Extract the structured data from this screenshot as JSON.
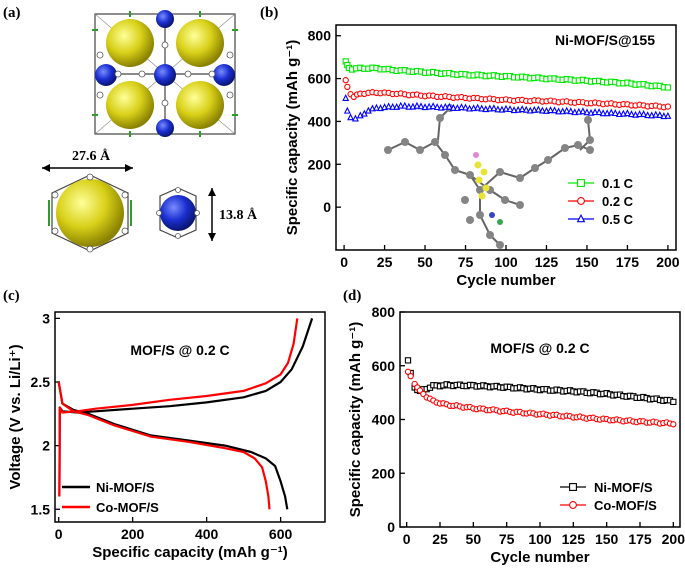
{
  "panels": {
    "a": {
      "label": "(a)",
      "dimension_width": "27.6 Å",
      "dimension_height": "13.8 Å"
    }
  },
  "chart_data": [
    {
      "id": "b",
      "panel_label": "(b)",
      "type": "scatter",
      "annotation": "Ni-MOF/S@155",
      "xlabel": "Cycle number",
      "ylabel": "Specific capacity (mAh g⁻¹)",
      "xlim": [
        -5,
        205
      ],
      "ylim": [
        -200,
        850
      ],
      "xticks": [
        0,
        25,
        50,
        75,
        100,
        125,
        150,
        175,
        200
      ],
      "yticks": [
        0,
        200,
        400,
        600,
        800
      ],
      "legend_position": "bottom-right",
      "inset": "molecular structure image",
      "series": [
        {
          "name": "0.1 C",
          "color": "#00e600",
          "marker": "square",
          "points": [
            [
              1,
              680
            ],
            [
              2,
              660
            ],
            [
              3,
              650
            ],
            [
              5,
              645
            ],
            [
              10,
              648
            ],
            [
              20,
              648
            ],
            [
              30,
              640
            ],
            [
              50,
              630
            ],
            [
              75,
              618
            ],
            [
              100,
              610
            ],
            [
              125,
              600
            ],
            [
              150,
              590
            ],
            [
              175,
              578
            ],
            [
              200,
              560
            ]
          ]
        },
        {
          "name": "0.2 C",
          "color": "#ff0000",
          "marker": "circle",
          "points": [
            [
              1,
              590
            ],
            [
              2,
              560
            ],
            [
              4,
              530
            ],
            [
              6,
              515
            ],
            [
              10,
              530
            ],
            [
              20,
              535
            ],
            [
              35,
              528
            ],
            [
              50,
              520
            ],
            [
              75,
              510
            ],
            [
              100,
              500
            ],
            [
              125,
              495
            ],
            [
              150,
              487
            ],
            [
              175,
              478
            ],
            [
              200,
              468
            ]
          ]
        },
        {
          "name": "0.5 C",
          "color": "#0000ff",
          "marker": "triangle",
          "points": [
            [
              1,
              505
            ],
            [
              2,
              450
            ],
            [
              4,
              420
            ],
            [
              7,
              410
            ],
            [
              10,
              425
            ],
            [
              15,
              450
            ],
            [
              20,
              462
            ],
            [
              35,
              470
            ],
            [
              50,
              468
            ],
            [
              75,
              462
            ],
            [
              100,
              455
            ],
            [
              125,
              450
            ],
            [
              150,
              442
            ],
            [
              175,
              434
            ],
            [
              200,
              425
            ]
          ]
        }
      ]
    },
    {
      "id": "c",
      "panel_label": "(c)",
      "type": "line",
      "annotation": "MOF/S @ 0.2 C",
      "xlabel": "Specific capacity (mAh g⁻¹)",
      "ylabel": "Voltage (V vs. Li/Li⁺)",
      "xlim": [
        -10,
        720
      ],
      "ylim": [
        1.4,
        3.05
      ],
      "xticks": [
        0,
        200,
        400,
        600
      ],
      "yticks": [
        1.5,
        2.0,
        2.5,
        3.0
      ],
      "legend_position": "bottom-left",
      "series": [
        {
          "name": "Ni-MOF/S",
          "color": "#000000",
          "charge": [
            [
              2,
              1.6
            ],
            [
              3,
              2.3
            ],
            [
              10,
              2.27
            ],
            [
              50,
              2.26
            ],
            [
              100,
              2.27
            ],
            [
              200,
              2.29
            ],
            [
              300,
              2.31
            ],
            [
              400,
              2.34
            ],
            [
              500,
              2.38
            ],
            [
              560,
              2.43
            ],
            [
              600,
              2.5
            ],
            [
              630,
              2.6
            ],
            [
              660,
              2.78
            ],
            [
              685,
              3.0
            ]
          ],
          "discharge": [
            [
              0,
              2.5
            ],
            [
              10,
              2.33
            ],
            [
              40,
              2.28
            ],
            [
              80,
              2.25
            ],
            [
              150,
              2.17
            ],
            [
              250,
              2.08
            ],
            [
              350,
              2.04
            ],
            [
              450,
              2.0
            ],
            [
              520,
              1.95
            ],
            [
              560,
              1.9
            ],
            [
              585,
              1.84
            ],
            [
              600,
              1.72
            ],
            [
              612,
              1.6
            ],
            [
              618,
              1.5
            ]
          ]
        },
        {
          "name": "Co-MOF/S",
          "color": "#ff0000",
          "charge": [
            [
              2,
              1.6
            ],
            [
              3,
              2.3
            ],
            [
              10,
              2.26
            ],
            [
              50,
              2.27
            ],
            [
              100,
              2.29
            ],
            [
              200,
              2.32
            ],
            [
              300,
              2.36
            ],
            [
              400,
              2.39
            ],
            [
              500,
              2.43
            ],
            [
              560,
              2.49
            ],
            [
              600,
              2.56
            ],
            [
              620,
              2.65
            ],
            [
              635,
              2.8
            ],
            [
              645,
              3.0
            ]
          ],
          "discharge": [
            [
              0,
              2.5
            ],
            [
              10,
              2.33
            ],
            [
              40,
              2.27
            ],
            [
              80,
              2.24
            ],
            [
              150,
              2.16
            ],
            [
              250,
              2.07
            ],
            [
              350,
              2.03
            ],
            [
              450,
              1.98
            ],
            [
              500,
              1.95
            ],
            [
              530,
              1.9
            ],
            [
              550,
              1.83
            ],
            [
              560,
              1.72
            ],
            [
              567,
              1.6
            ],
            [
              570,
              1.5
            ]
          ]
        }
      ]
    },
    {
      "id": "d",
      "panel_label": "(d)",
      "type": "scatter",
      "annotation": "MOF/S @ 0.2 C",
      "xlabel": "Cycle number",
      "ylabel": "Specific capacity (mAh g⁻¹)",
      "xlim": [
        -5,
        205
      ],
      "ylim": [
        0,
        800
      ],
      "xticks": [
        0,
        25,
        50,
        75,
        100,
        125,
        150,
        175,
        200
      ],
      "yticks": [
        0,
        200,
        400,
        600,
        800
      ],
      "legend_position": "bottom-right",
      "series": [
        {
          "name": "Ni-MOF/S",
          "color": "#000000",
          "marker": "square",
          "points": [
            [
              1,
              620
            ],
            [
              3,
              570
            ],
            [
              6,
              520
            ],
            [
              10,
              505
            ],
            [
              15,
              515
            ],
            [
              20,
              525
            ],
            [
              30,
              528
            ],
            [
              50,
              526
            ],
            [
              75,
              520
            ],
            [
              100,
              512
            ],
            [
              125,
              505
            ],
            [
              150,
              495
            ],
            [
              175,
              482
            ],
            [
              200,
              468
            ]
          ]
        },
        {
          "name": "Co-MOF/S",
          "color": "#ff0000",
          "marker": "circle",
          "points": [
            [
              1,
              575
            ],
            [
              3,
              560
            ],
            [
              6,
              535
            ],
            [
              10,
              505
            ],
            [
              15,
              485
            ],
            [
              20,
              468
            ],
            [
              30,
              455
            ],
            [
              50,
              442
            ],
            [
              75,
              430
            ],
            [
              100,
              420
            ],
            [
              125,
              410
            ],
            [
              150,
              400
            ],
            [
              175,
              392
            ],
            [
              200,
              385
            ]
          ]
        }
      ]
    }
  ]
}
